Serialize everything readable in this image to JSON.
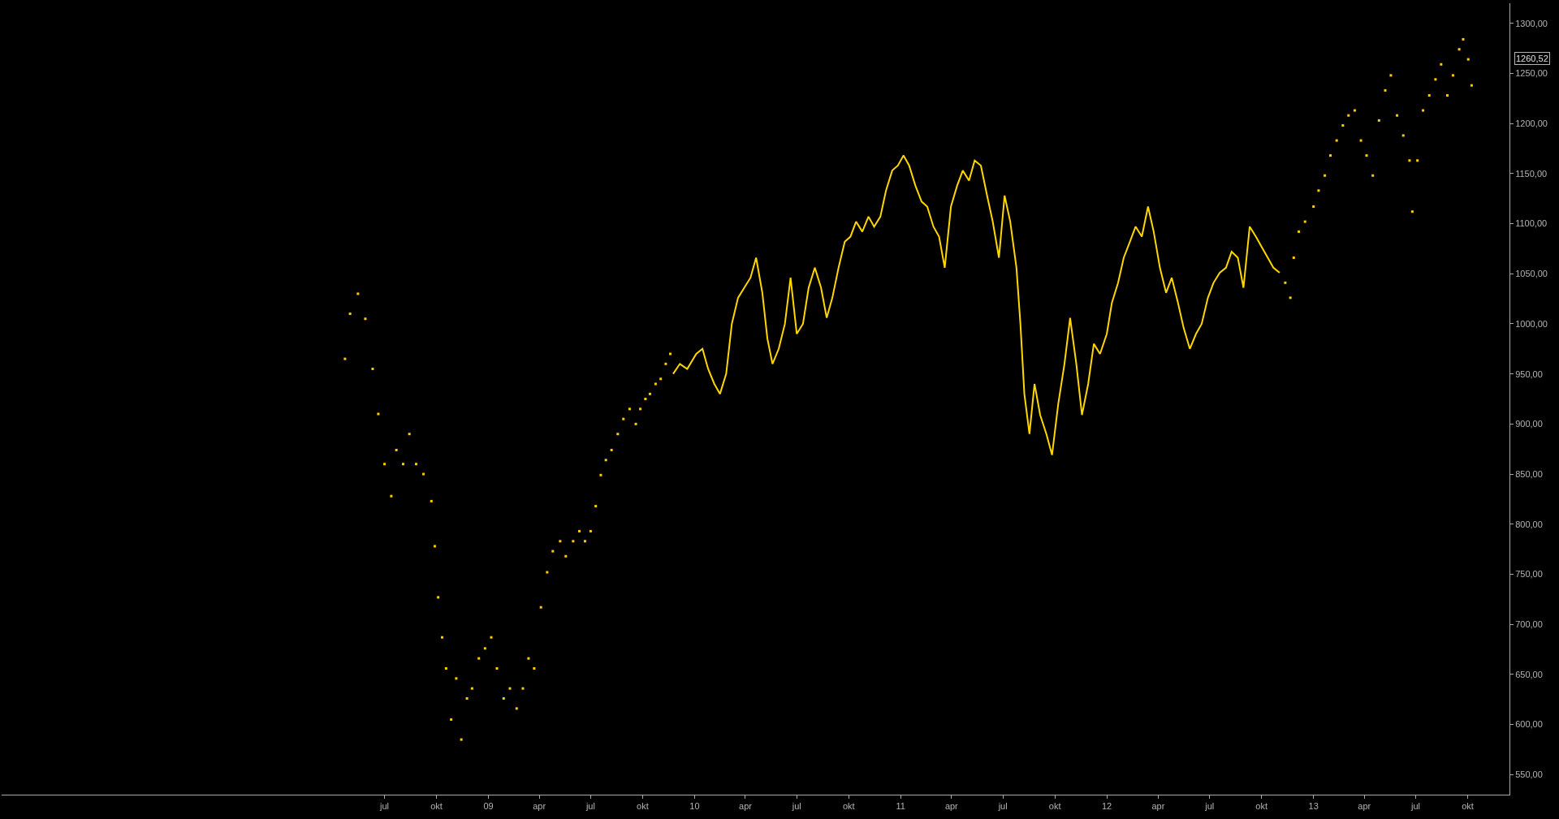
{
  "chart_data": {
    "type": "line",
    "xlim": [
      "2006-08-23",
      "2013-12-14"
    ],
    "ylim": [
      530,
      1320
    ],
    "xticks": [
      {
        "value": "2008-07-01",
        "label": "jul"
      },
      {
        "value": "2008-10-01",
        "label": "okt"
      },
      {
        "value": "2009-01-01",
        "label": "09"
      },
      {
        "value": "2009-04-01",
        "label": "apr"
      },
      {
        "value": "2009-07-01",
        "label": "jul"
      },
      {
        "value": "2009-10-01",
        "label": "okt"
      },
      {
        "value": "2010-01-01",
        "label": "10"
      },
      {
        "value": "2010-04-01",
        "label": "apr"
      },
      {
        "value": "2010-07-01",
        "label": "jul"
      },
      {
        "value": "2010-10-01",
        "label": "okt"
      },
      {
        "value": "2011-01-01",
        "label": "11"
      },
      {
        "value": "2011-04-01",
        "label": "apr"
      },
      {
        "value": "2011-07-01",
        "label": "jul"
      },
      {
        "value": "2011-10-01",
        "label": "okt"
      },
      {
        "value": "2012-01-01",
        "label": "12"
      },
      {
        "value": "2012-04-01",
        "label": "apr"
      },
      {
        "value": "2012-07-01",
        "label": "jul"
      },
      {
        "value": "2012-10-01",
        "label": "okt"
      },
      {
        "value": "2013-01-01",
        "label": "13"
      },
      {
        "value": "2013-04-01",
        "label": "apr"
      },
      {
        "value": "2013-07-01",
        "label": "jul"
      },
      {
        "value": "2013-10-01",
        "label": "okt"
      }
    ],
    "yticks": [
      {
        "value": 550,
        "label": "550,00"
      },
      {
        "value": 600,
        "label": "600,00"
      },
      {
        "value": 650,
        "label": "650,00"
      },
      {
        "value": 700,
        "label": "700,00"
      },
      {
        "value": 750,
        "label": "750,00"
      },
      {
        "value": 800,
        "label": "800,00"
      },
      {
        "value": 850,
        "label": "850,00"
      },
      {
        "value": 900,
        "label": "900,00"
      },
      {
        "value": 950,
        "label": "950,00"
      },
      {
        "value": 1000,
        "label": "1000,00"
      },
      {
        "value": 1050,
        "label": "1050,00"
      },
      {
        "value": 1100,
        "label": "1100,00"
      },
      {
        "value": 1150,
        "label": "1150,00"
      },
      {
        "value": 1200,
        "label": "1200,00"
      },
      {
        "value": 1250,
        "label": "1250,00"
      },
      {
        "value": 1300,
        "label": "1300,00"
      }
    ],
    "grid": false,
    "marker": "none",
    "annotations": [
      "1260,52"
    ],
    "series": [
      {
        "type": "scatter",
        "marker": "square",
        "color": "#ffcc00",
        "x": [
          "2008-04-22",
          "2008-05-01",
          "2008-05-15",
          "2008-05-28",
          "2008-06-10",
          "2008-06-20",
          "2008-07-01",
          "2008-07-13",
          "2008-07-22",
          "2008-08-03",
          "2008-08-14",
          "2008-08-26",
          "2008-09-08",
          "2008-09-22",
          "2008-09-28",
          "2008-10-04",
          "2008-10-11",
          "2008-10-18",
          "2008-10-27",
          "2008-11-05",
          "2008-11-14",
          "2008-11-24",
          "2008-12-03",
          "2008-12-15",
          "2008-12-26",
          "2009-01-06",
          "2009-01-16",
          "2009-01-28",
          "2009-02-08",
          "2009-02-20",
          "2009-03-03",
          "2009-03-13",
          "2009-03-23",
          "2009-04-04",
          "2009-04-15",
          "2009-04-25",
          "2009-05-08",
          "2009-05-18",
          "2009-05-31",
          "2009-06-11",
          "2009-06-21",
          "2009-07-01",
          "2009-07-10",
          "2009-07-19",
          "2009-07-28",
          "2009-08-07",
          "2009-08-18",
          "2009-08-28",
          "2009-09-08",
          "2009-09-19",
          "2009-09-27",
          "2009-10-06",
          "2009-10-14",
          "2009-10-24",
          "2009-11-02",
          "2009-11-11",
          "2009-11-19"
        ],
        "values": [
          965,
          1010,
          1030,
          1005,
          955,
          910,
          860,
          828,
          874,
          860,
          890,
          860,
          850,
          823,
          778,
          727,
          687,
          656,
          605,
          646,
          585,
          626,
          636,
          666,
          676,
          687,
          656,
          626,
          636,
          616,
          636,
          666,
          656,
          717,
          752,
          773,
          783,
          768,
          783,
          793,
          783,
          793,
          818,
          849,
          864,
          874,
          890,
          905,
          915,
          900,
          915,
          925,
          930,
          940,
          945,
          960,
          970
        ]
      },
      {
        "color": "#ffd700",
        "x": [
          "2009-11-24",
          "2009-12-06",
          "2009-12-19",
          "2010-01-04",
          "2010-01-15",
          "2010-01-25",
          "2010-02-05",
          "2010-02-15",
          "2010-02-26",
          "2010-03-08",
          "2010-03-19",
          "2010-03-30",
          "2010-04-10",
          "2010-04-20",
          "2010-05-01",
          "2010-05-10",
          "2010-05-19",
          "2010-05-30",
          "2010-06-10",
          "2010-06-20",
          "2010-07-01",
          "2010-07-12",
          "2010-07-22",
          "2010-08-02",
          "2010-08-13",
          "2010-08-23",
          "2010-09-02",
          "2010-09-13",
          "2010-09-24",
          "2010-10-04",
          "2010-10-14",
          "2010-10-25",
          "2010-11-05",
          "2010-11-15",
          "2010-11-26",
          "2010-12-06",
          "2010-12-17",
          "2010-12-27",
          "2011-01-06",
          "2011-01-16",
          "2011-01-27",
          "2011-02-07",
          "2011-02-17",
          "2011-02-28",
          "2011-03-10",
          "2011-03-20",
          "2011-03-31",
          "2011-04-11",
          "2011-04-21",
          "2011-05-02",
          "2011-05-12",
          "2011-05-23",
          "2011-06-03",
          "2011-06-13",
          "2011-06-24",
          "2011-07-04",
          "2011-07-14",
          "2011-07-25",
          "2011-08-01",
          "2011-08-08",
          "2011-08-17",
          "2011-08-26",
          "2011-09-05",
          "2011-09-16",
          "2011-09-26",
          "2011-10-07",
          "2011-10-18",
          "2011-10-28",
          "2011-11-08",
          "2011-11-18",
          "2011-11-29",
          "2011-12-09",
          "2011-12-20",
          "2012-01-01",
          "2012-01-10",
          "2012-01-21",
          "2012-01-31",
          "2012-02-11",
          "2012-02-21",
          "2012-03-03",
          "2012-03-14",
          "2012-03-24",
          "2012-04-04",
          "2012-04-15",
          "2012-04-25",
          "2012-05-06",
          "2012-05-16",
          "2012-05-27",
          "2012-06-07",
          "2012-06-17",
          "2012-06-28",
          "2012-07-08",
          "2012-07-19",
          "2012-07-30",
          "2012-08-09",
          "2012-08-20",
          "2012-08-30",
          "2012-09-10",
          "2012-09-21",
          "2012-10-01",
          "2012-10-12",
          "2012-10-22",
          "2012-11-02"
        ],
        "values": [
          950,
          960,
          955,
          970,
          975,
          955,
          940,
          930,
          950,
          1000,
          1026,
          1036,
          1046,
          1066,
          1031,
          985,
          960,
          975,
          1000,
          1046,
          990,
          1000,
          1036,
          1056,
          1036,
          1006,
          1026,
          1056,
          1082,
          1087,
          1102,
          1092,
          1107,
          1097,
          1107,
          1133,
          1153,
          1158,
          1168,
          1158,
          1138,
          1122,
          1117,
          1097,
          1087,
          1056,
          1117,
          1138,
          1153,
          1143,
          1163,
          1158,
          1128,
          1102,
          1066,
          1128,
          1102,
          1056,
          1000,
          930,
          890,
          940,
          909,
          890,
          869,
          920,
          960,
          1006,
          960,
          909,
          940,
          980,
          970,
          990,
          1021,
          1041,
          1066,
          1082,
          1097,
          1087,
          1117,
          1092,
          1056,
          1031,
          1046,
          1021,
          996,
          975,
          990,
          1000,
          1026,
          1041,
          1051,
          1056,
          1072,
          1066,
          1036,
          1097,
          1087,
          1077,
          1066,
          1056,
          1051
        ]
      },
      {
        "type": "scatter",
        "marker": "square",
        "color": "#ffcc00",
        "x": [
          "2012-11-12",
          "2012-11-21",
          "2012-11-27",
          "2012-12-06",
          "2012-12-17",
          "2013-01-01",
          "2013-01-10",
          "2013-01-21",
          "2013-01-31",
          "2013-02-11",
          "2013-02-22",
          "2013-03-04",
          "2013-03-15",
          "2013-03-26",
          "2013-04-05",
          "2013-04-16",
          "2013-04-27",
          "2013-05-08",
          "2013-05-18",
          "2013-05-29",
          "2013-06-09",
          "2013-06-20",
          "2013-06-25",
          "2013-07-04",
          "2013-07-14",
          "2013-07-25",
          "2013-08-05",
          "2013-08-15",
          "2013-08-26",
          "2013-09-05",
          "2013-09-16",
          "2013-09-23",
          "2013-10-02",
          "2013-10-08"
        ],
        "values": [
          1041,
          1026,
          1066,
          1092,
          1102,
          1117,
          1133,
          1148,
          1168,
          1183,
          1198,
          1208,
          1213,
          1183,
          1168,
          1148,
          1203,
          1233,
          1248,
          1208,
          1188,
          1163,
          1112,
          1163,
          1213,
          1228,
          1244,
          1259,
          1228,
          1248,
          1274,
          1284,
          1264,
          1238
        ]
      }
    ]
  }
}
